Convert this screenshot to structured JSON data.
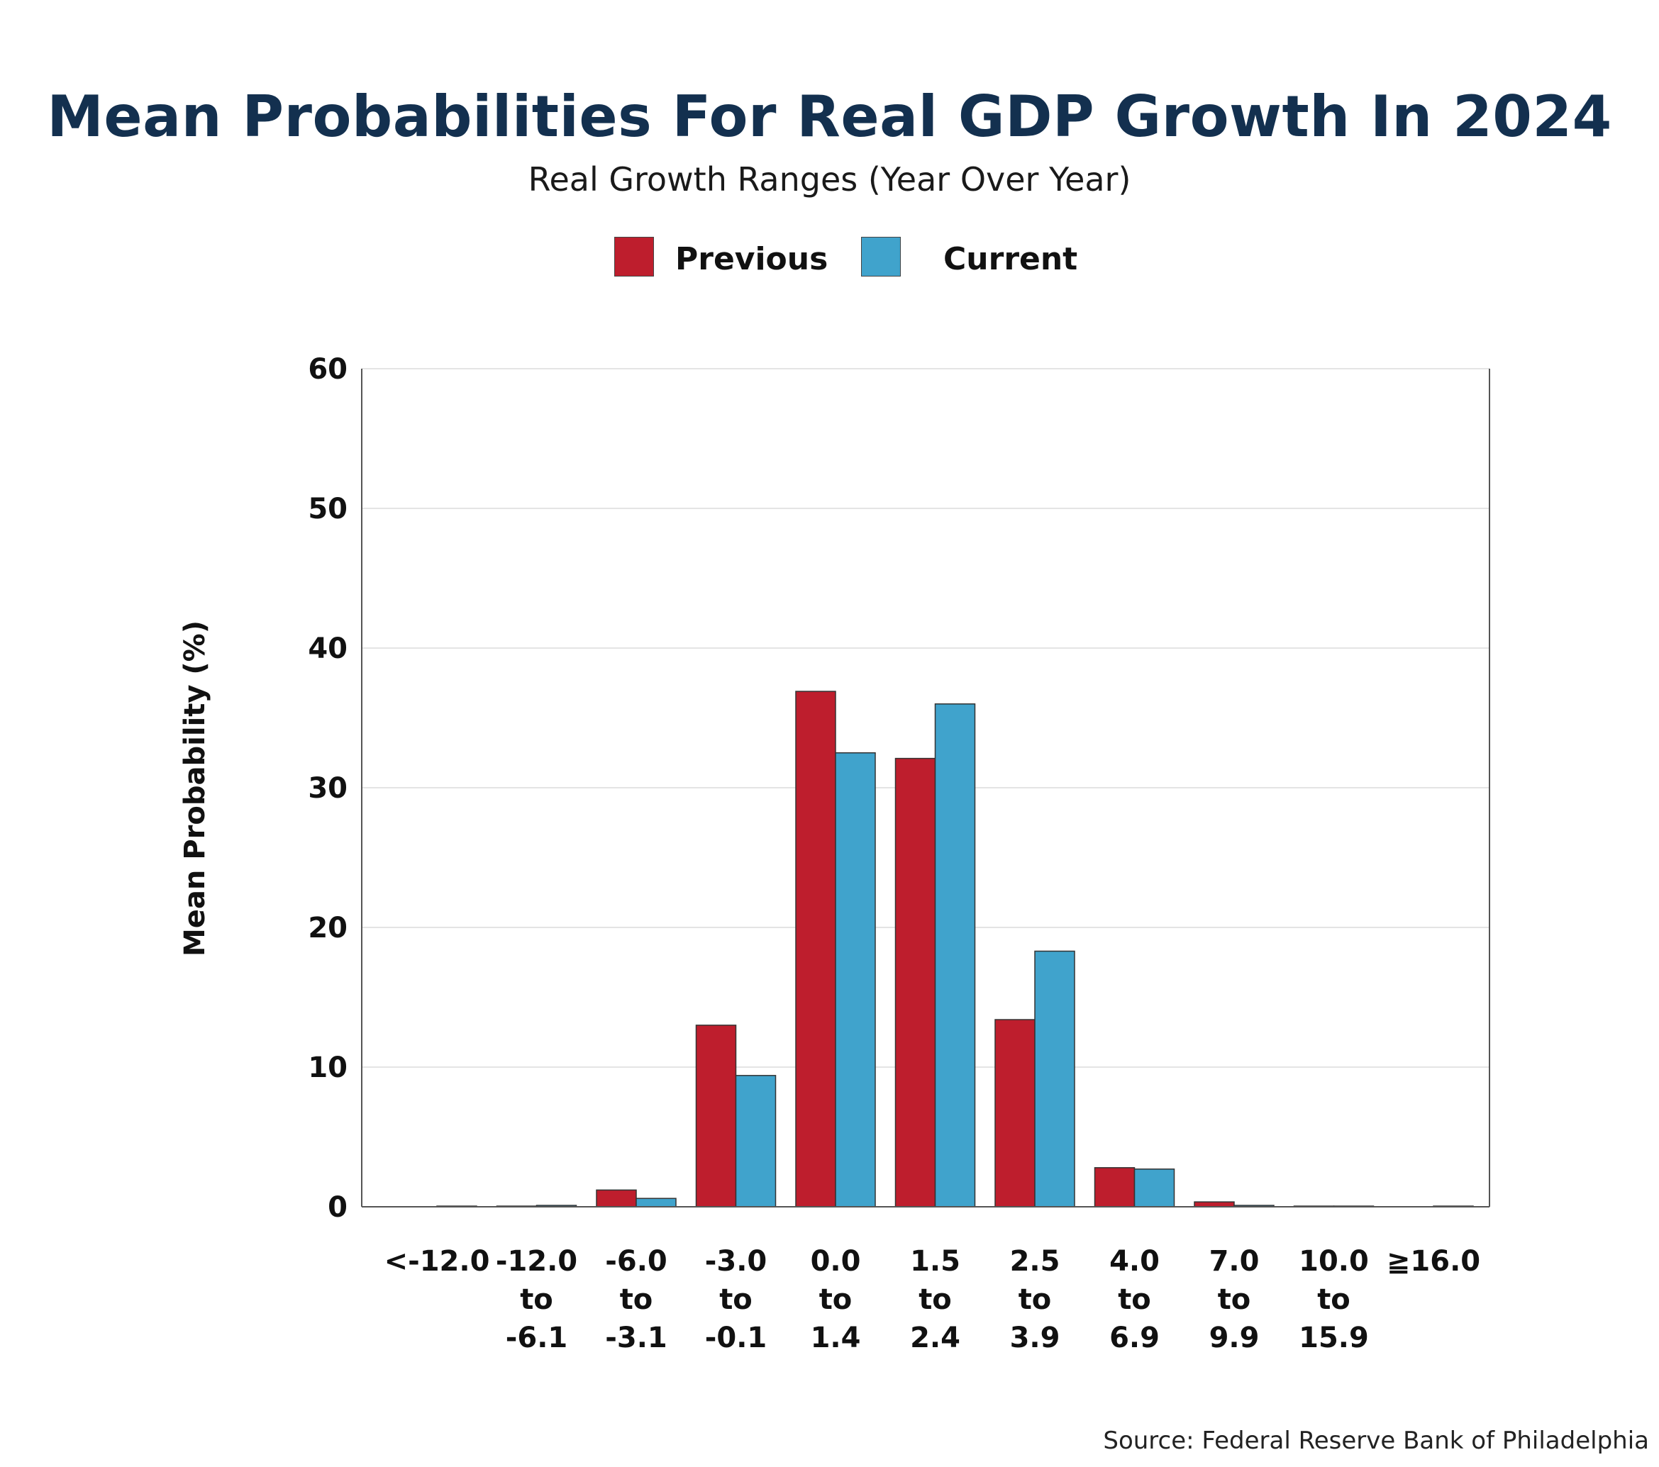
{
  "title": "Mean Probabilities For Real GDP Growth In 2024",
  "subtitle": "Real Growth Ranges (Year Over Year)",
  "source": "Source: Federal Reserve Bank of Philadelphia",
  "colors": {
    "previous": "#be1e2d",
    "current": "#40a3cc",
    "title": "#13304f"
  },
  "chart_data": {
    "type": "bar",
    "title": "Mean Probabilities For Real GDP Growth In 2024",
    "subtitle": "Real Growth Ranges (Year Over Year)",
    "ylabel": "Mean Probability (%)",
    "ylim": [
      0,
      60
    ],
    "yticks": [
      0,
      10,
      20,
      30,
      40,
      50,
      60
    ],
    "grid": true,
    "legend_position": "top-center",
    "categories": [
      [
        "<-12.0"
      ],
      [
        "-12.0",
        "to",
        "-6.1"
      ],
      [
        "-6.0",
        "to",
        "-3.1"
      ],
      [
        "-3.0",
        "to",
        "-0.1"
      ],
      [
        "0.0",
        "to",
        "1.4"
      ],
      [
        "1.5",
        "to",
        "2.4"
      ],
      [
        "2.5",
        "to",
        "3.9"
      ],
      [
        "4.0",
        "to",
        "6.9"
      ],
      [
        "7.0",
        "to",
        "9.9"
      ],
      [
        "10.0",
        "to",
        "15.9"
      ],
      [
        "≧16.0"
      ]
    ],
    "series": [
      {
        "name": "Previous",
        "color": "#be1e2d",
        "values": [
          0.0,
          0.05,
          1.2,
          13.0,
          36.9,
          32.1,
          13.4,
          2.8,
          0.35,
          0.05,
          0.0
        ]
      },
      {
        "name": "Current",
        "color": "#40a3cc",
        "values": [
          0.05,
          0.1,
          0.6,
          9.4,
          32.5,
          36.0,
          18.3,
          2.7,
          0.1,
          0.05,
          0.05
        ]
      }
    ]
  }
}
